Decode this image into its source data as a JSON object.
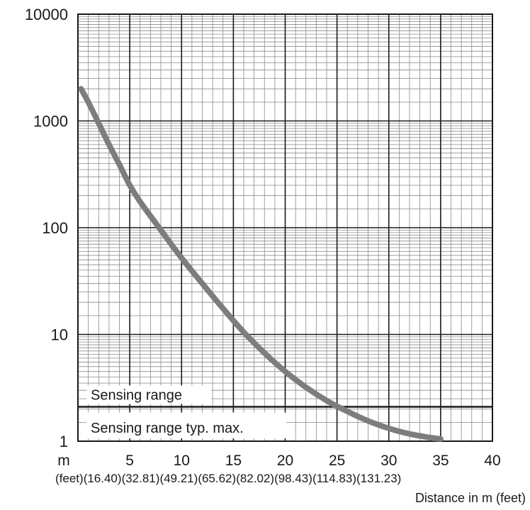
{
  "chart_data": {
    "type": "line",
    "x_scale": "linear",
    "y_scale": "log",
    "xlim": [
      0,
      40
    ],
    "ylim": [
      1,
      10000
    ],
    "x_ticks": [
      {
        "value": 0,
        "label": "m",
        "sub": "(feet)"
      },
      {
        "value": 5,
        "label": "5",
        "sub": "(16.40)"
      },
      {
        "value": 10,
        "label": "10",
        "sub": "(32.81)"
      },
      {
        "value": 15,
        "label": "15",
        "sub": "(49.21)"
      },
      {
        "value": 20,
        "label": "20",
        "sub": "(65.62)"
      },
      {
        "value": 25,
        "label": "25",
        "sub": "(82.02)"
      },
      {
        "value": 30,
        "label": "30",
        "sub": "(98.43)"
      },
      {
        "value": 35,
        "label": "35",
        "sub": "(114.83)"
      },
      {
        "value": 40,
        "label": "40",
        "sub": "(131.23)"
      }
    ],
    "y_ticks": [
      {
        "value": 1,
        "label": "1"
      },
      {
        "value": 10,
        "label": "10"
      },
      {
        "value": 100,
        "label": "100"
      },
      {
        "value": 1000,
        "label": "1000"
      },
      {
        "value": 10000,
        "label": "10000"
      }
    ],
    "xlabel": "Distance in m (feet)",
    "ylabel": "",
    "grid": true,
    "series": [
      {
        "color": "#7d7d7d",
        "x": [
          0.3,
          1,
          2,
          3,
          4,
          5,
          6,
          8,
          10,
          12,
          14,
          16,
          18,
          20,
          22,
          24,
          26,
          28,
          30,
          32,
          34,
          35
        ],
        "y": [
          2000,
          1500,
          950,
          600,
          390,
          250,
          175,
          95,
          52,
          30,
          17.5,
          10.5,
          6.7,
          4.5,
          3.2,
          2.4,
          1.9,
          1.55,
          1.32,
          1.17,
          1.08,
          1.05
        ]
      }
    ],
    "threshold": {
      "value": 2.1,
      "label_above": "Sensing range",
      "label_below": "Sensing range typ. max."
    }
  }
}
